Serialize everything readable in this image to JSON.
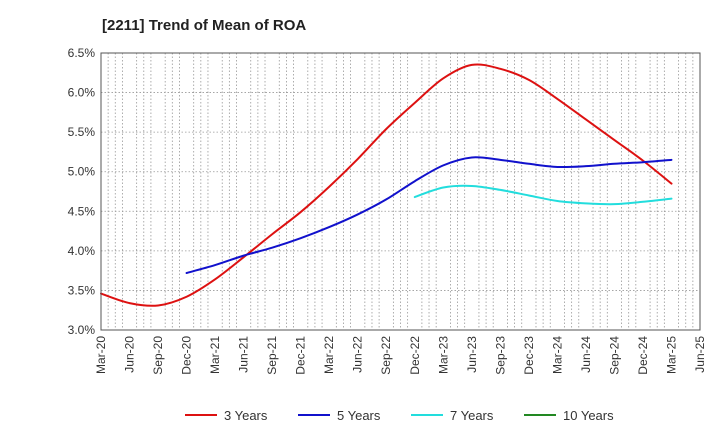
{
  "chart_data": {
    "type": "line",
    "title": "[2211]  Trend of Mean of ROA",
    "xlabel": "",
    "ylabel": "",
    "ylim": [
      3.0,
      6.5
    ],
    "y_ticks": [
      3.0,
      3.5,
      4.0,
      4.5,
      5.0,
      5.5,
      6.0,
      6.5
    ],
    "y_tick_labels": [
      "3.0%",
      "3.5%",
      "4.0%",
      "4.5%",
      "5.0%",
      "5.5%",
      "6.0%",
      "6.5%"
    ],
    "categories": [
      "Mar-20",
      "Jun-20",
      "Sep-20",
      "Dec-20",
      "Mar-21",
      "Jun-21",
      "Sep-21",
      "Dec-21",
      "Mar-22",
      "Jun-22",
      "Sep-22",
      "Dec-22",
      "Mar-23",
      "Jun-23",
      "Sep-23",
      "Dec-23",
      "Mar-24",
      "Jun-24",
      "Sep-24",
      "Dec-24",
      "Mar-25",
      "Jun-25"
    ],
    "grid": true,
    "legend_position": "bottom",
    "series": [
      {
        "name": "3 Years",
        "color": "#dd1111",
        "values": [
          3.46,
          3.34,
          3.31,
          3.42,
          3.64,
          3.92,
          4.21,
          4.49,
          4.81,
          5.16,
          5.54,
          5.87,
          6.18,
          6.35,
          6.3,
          6.16,
          5.92,
          5.66,
          5.4,
          5.14,
          4.85,
          null
        ]
      },
      {
        "name": "5 Years",
        "color": "#1111cc",
        "values": [
          null,
          null,
          null,
          3.72,
          3.82,
          3.94,
          4.04,
          4.16,
          4.3,
          4.46,
          4.65,
          4.88,
          5.08,
          5.18,
          5.15,
          5.1,
          5.06,
          5.07,
          5.1,
          5.12,
          5.15,
          null
        ]
      },
      {
        "name": "7 Years",
        "color": "#22dddd",
        "values": [
          null,
          null,
          null,
          null,
          null,
          null,
          null,
          null,
          null,
          null,
          null,
          4.68,
          4.8,
          4.82,
          4.77,
          4.7,
          4.63,
          4.6,
          4.59,
          4.62,
          4.66,
          null
        ]
      },
      {
        "name": "10 Years",
        "color": "#228822",
        "values": [
          null,
          null,
          null,
          null,
          null,
          null,
          null,
          null,
          null,
          null,
          null,
          null,
          null,
          null,
          null,
          null,
          null,
          null,
          null,
          null,
          null,
          null
        ]
      }
    ]
  }
}
